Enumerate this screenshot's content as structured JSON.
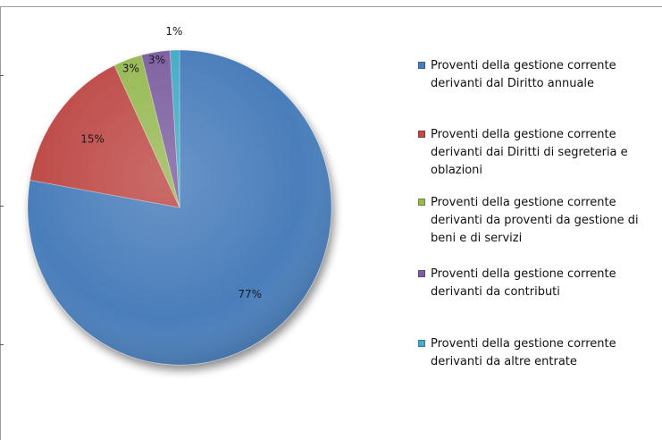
{
  "chart_data": {
    "type": "pie",
    "title": "",
    "slices": [
      {
        "label": "Proventi della gestione corrente derivanti dal Diritto annuale",
        "value": 77,
        "percent_label": "77%",
        "color": "#4a7ebb"
      },
      {
        "label": "Proventi della gestione corrente derivanti dai Diritti di segreteria e oblazioni",
        "value": 15,
        "percent_label": "15%",
        "color": "#be4b48"
      },
      {
        "label": "Proventi della gestione corrente derivanti da proventi da gestione di beni e di servizi",
        "value": 3,
        "percent_label": "3%",
        "color": "#98b954"
      },
      {
        "label": "Proventi della gestione corrente derivanti da contributi",
        "value": 3,
        "percent_label": "3%",
        "color": "#7d60a0"
      },
      {
        "label": "Proventi della gestione corrente derivanti da altre entrate",
        "value": 1,
        "percent_label": "1%",
        "color": "#46aac5"
      }
    ],
    "legend_position": "right",
    "style": "3d-pie"
  }
}
